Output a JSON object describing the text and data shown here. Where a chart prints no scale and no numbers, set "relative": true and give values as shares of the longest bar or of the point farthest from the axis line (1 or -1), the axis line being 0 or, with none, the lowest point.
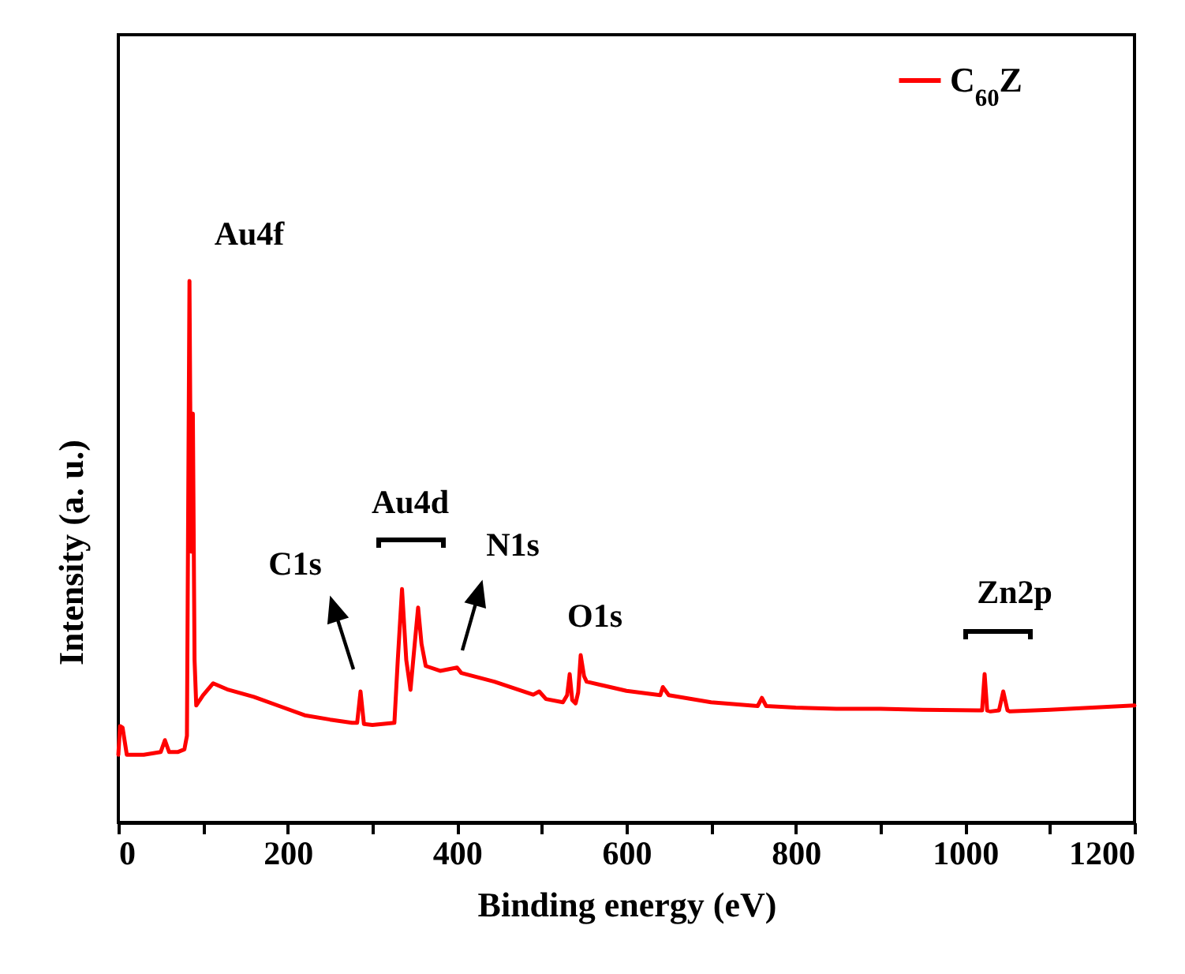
{
  "chart_data": {
    "type": "line",
    "relative": true,
    "xlabel": "Binding energy (eV)",
    "ylabel": "Intensity (a. u.)",
    "xlim": [
      0,
      1200
    ],
    "xticks": [
      0,
      {
        "value": 100,
        "label": null
      },
      200,
      {
        "value": 300,
        "label": null
      },
      400,
      {
        "value": 500,
        "label": null
      },
      600,
      {
        "value": 700,
        "label": null
      },
      800,
      {
        "value": 900,
        "label": null
      },
      1000,
      {
        "value": 1100,
        "label": null
      },
      1200
    ],
    "legend": "top right",
    "marker": "none",
    "annotations": [
      "Au4f",
      "C1s",
      "Au4d",
      "N1s",
      "O1s",
      "Zn2p"
    ],
    "x": [
      0,
      2,
      5,
      10,
      30,
      50,
      55,
      60,
      70,
      78,
      81,
      84,
      86,
      88,
      90,
      92,
      100,
      112,
      130,
      160,
      190,
      220,
      250,
      276,
      282,
      286,
      290,
      300,
      326,
      330,
      335,
      340,
      345,
      350,
      354,
      358,
      363,
      380,
      400,
      405,
      444,
      490,
      497,
      505,
      525,
      530,
      533,
      536,
      540,
      543,
      546,
      550,
      553,
      600,
      640,
      643,
      650,
      700,
      755,
      760,
      765,
      800,
      848,
      900,
      950,
      1015,
      1020,
      1023,
      1026,
      1030,
      1040,
      1045,
      1050,
      1053,
      1100,
      1150,
      1200
    ],
    "series": [
      {
        "name": "C$_{60}$Z",
        "color": "#ff0000",
        "values": [
          0.125,
          0.178,
          0.175,
          0.125,
          0.125,
          0.13,
          0.152,
          0.13,
          0.13,
          0.135,
          0.16,
          1.0,
          0.5,
          0.755,
          0.3,
          0.216,
          0.235,
          0.257,
          0.245,
          0.232,
          0.215,
          0.198,
          0.19,
          0.184,
          0.184,
          0.242,
          0.182,
          0.18,
          0.184,
          0.3,
          0.431,
          0.3,
          0.245,
          0.33,
          0.397,
          0.33,
          0.289,
          0.28,
          0.286,
          0.276,
          0.26,
          0.236,
          0.242,
          0.228,
          0.222,
          0.235,
          0.274,
          0.226,
          0.22,
          0.24,
          0.309,
          0.27,
          0.26,
          0.243,
          0.235,
          0.25,
          0.235,
          0.222,
          0.215,
          0.23,
          0.215,
          0.212,
          0.21,
          0.21,
          0.208,
          0.207,
          0.207,
          0.274,
          0.207,
          0.205,
          0.207,
          0.242,
          0.207,
          0.205,
          0.208,
          0.212,
          0.216
        ]
      }
    ]
  }
}
